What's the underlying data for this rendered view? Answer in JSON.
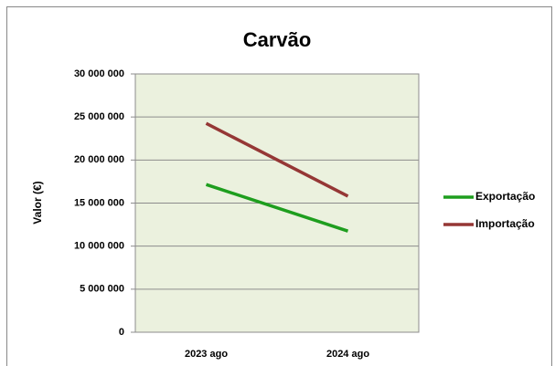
{
  "chart_data": {
    "type": "line",
    "title": "Carvão",
    "y_label": "Valor (€)",
    "categories": [
      "2023 ago",
      "2024 ago"
    ],
    "series": [
      {
        "name": "Exportação",
        "color": "#1e9e1e",
        "values": [
          17150000,
          11750000
        ]
      },
      {
        "name": "Importação",
        "color": "#953735",
        "values": [
          24250000,
          15800000
        ]
      }
    ],
    "ylim": [
      0,
      30000000
    ],
    "yticks": [
      0,
      {
        "value": 5000000,
        "label": "5 000 000"
      },
      {
        "value": 10000000,
        "label": "10 000 000"
      },
      {
        "value": 15000000,
        "label": "15 000 000"
      },
      {
        "value": 20000000,
        "label": "20 000 000"
      },
      {
        "value": 25000000,
        "label": "25 000 000"
      },
      {
        "value": 30000000,
        "label": "30 000 000"
      }
    ],
    "grid": true,
    "legend": "right"
  }
}
